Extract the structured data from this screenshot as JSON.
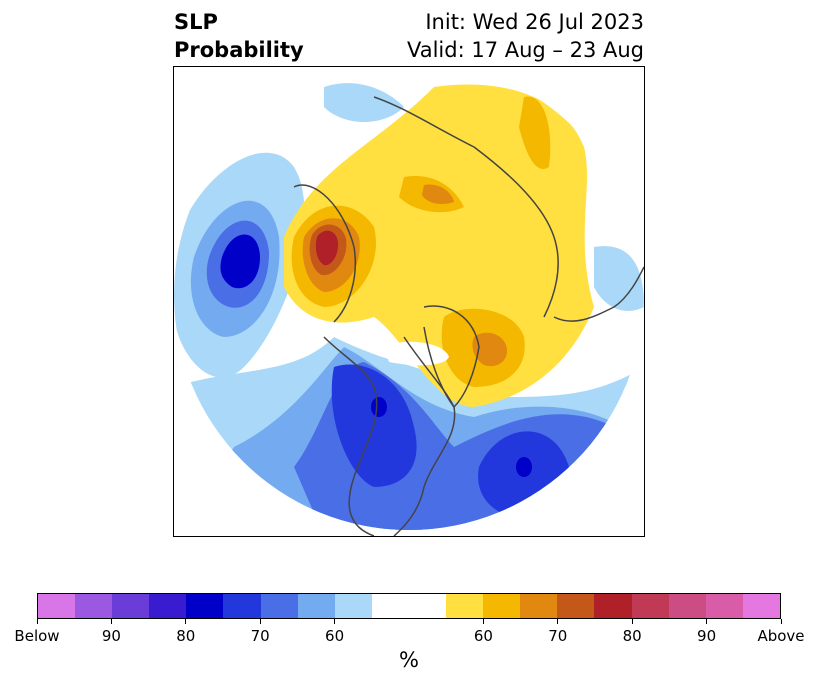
{
  "title": {
    "left_line1": "SLP",
    "left_line2": "Probability",
    "right_line1": "Init: Wed 26 Jul 2023",
    "right_line2": "Valid: 17 Aug – 23 Aug"
  },
  "colorbar": {
    "unit": "%",
    "colors": [
      "#d876e8",
      "#9b58e0",
      "#6a3cd8",
      "#3a1cd0",
      "#0000c8",
      "#2238dc",
      "#4a6ee6",
      "#74aaf0",
      "#aad8f8",
      "#ffffff",
      "#ffffff",
      "#ffe040",
      "#f4b800",
      "#e08810",
      "#c45818",
      "#b02028",
      "#c03a56",
      "#cc4c84",
      "#d85ca8",
      "#e478e0"
    ],
    "tick_labels": [
      "Below",
      "90",
      "80",
      "70",
      "60",
      "60",
      "70",
      "80",
      "90",
      "Above"
    ]
  }
}
